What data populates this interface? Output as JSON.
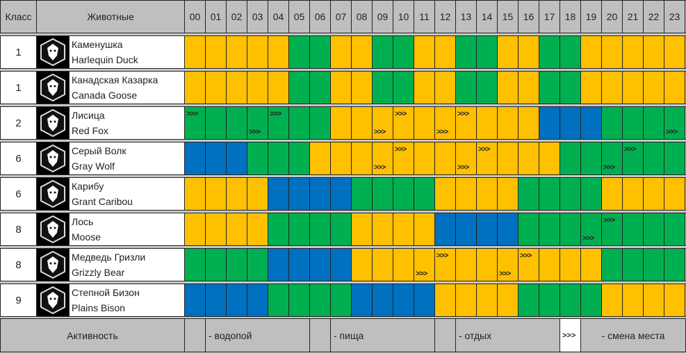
{
  "header": {
    "class": "Класс",
    "animals": "Животные",
    "hours": [
      "00",
      "01",
      "02",
      "03",
      "04",
      "05",
      "06",
      "07",
      "08",
      "09",
      "10",
      "11",
      "12",
      "13",
      "14",
      "15",
      "16",
      "17",
      "18",
      "19",
      "20",
      "21",
      "22",
      "23"
    ]
  },
  "colors": {
    "Y": "#ffc000",
    "G": "#00b050",
    "B": "#0070c0"
  },
  "marker": ">>>",
  "animals": [
    {
      "class": "1",
      "ru": "Каменушка",
      "en": "Harlequin Duck",
      "icon": "duck-icon",
      "activity": "YYYYYGGYYGGYYGGYYGGYYYYY",
      "top": [],
      "bottom": []
    },
    {
      "class": "1",
      "ru": "Канадская Казарка",
      "en": "Canada Goose",
      "icon": "goose-icon",
      "activity": "YYYYYGGYYGGYYGGYYGGYYYYY",
      "top": [],
      "bottom": []
    },
    {
      "class": "2",
      "ru": "Лисица",
      "en": "Red Fox",
      "icon": "fox-icon",
      "activity": "GGGGGGGYYYYYYYYYYBBBGGGG",
      "top": [
        0,
        4,
        10,
        13
      ],
      "bottom": [
        3,
        9,
        12,
        23
      ]
    },
    {
      "class": "6",
      "ru": "Серый Волк",
      "en": "Gray Wolf",
      "icon": "wolf-icon",
      "activity": "BBBGGGYYYYYYYYYYYYGGGGGG",
      "top": [
        10,
        14,
        21
      ],
      "bottom": [
        9,
        13,
        20
      ]
    },
    {
      "class": "6",
      "ru": "Карибу",
      "en": "Grant Caribou",
      "icon": "caribou-icon",
      "activity": "YYYYBBBBGGGGYYYYGGGGYYYY",
      "top": [],
      "bottom": []
    },
    {
      "class": "8",
      "ru": "Лось",
      "en": "Moose",
      "icon": "moose-icon",
      "activity": "YYYYGGGGYYYYBBBBGGGGGGGG",
      "top": [
        20
      ],
      "bottom": [
        19
      ]
    },
    {
      "class": "8",
      "ru": "Медведь Гризли",
      "en": "Grizzly Bear",
      "icon": "bear-icon",
      "activity": "GGGGBBBBYYYYYYYYYYYYGGGG",
      "top": [
        12,
        16
      ],
      "bottom": [
        11,
        15
      ]
    },
    {
      "class": "9",
      "ru": "Степной Бизон",
      "en": "Plains Bison",
      "icon": "bison-icon",
      "activity": "BBBBGGGGBBBBYYYYGGGGYYYY",
      "top": [],
      "bottom": []
    }
  ],
  "legend": {
    "title": "Активность",
    "water": "- водопой",
    "food": "- пища",
    "rest": "- отдых",
    "move_symbol": ">>>",
    "move": "- смена места"
  }
}
